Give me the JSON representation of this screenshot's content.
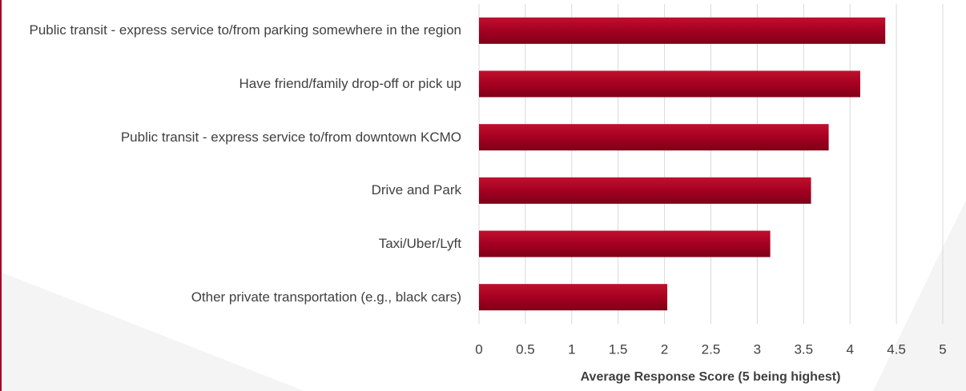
{
  "chart_data": {
    "type": "bar",
    "orientation": "horizontal",
    "categories": [
      "Public transit - express service to/from parking somewhere in the region",
      "Have friend/family drop-off or pick up",
      "Public transit - express service to/from downtown KCMO",
      "Drive and Park",
      "Taxi/Uber/Lyft",
      "Other private transportation (e.g., black cars)"
    ],
    "values": [
      4.38,
      4.11,
      3.77,
      3.58,
      3.14,
      2.03
    ],
    "color": "#a50021",
    "xlabel": "Average Response Score (5 being highest)",
    "xlim": [
      0,
      5
    ],
    "xticks": [
      0,
      0.5,
      1,
      1.5,
      2,
      2.5,
      3,
      3.5,
      4,
      4.5,
      5
    ],
    "grid": true
  }
}
